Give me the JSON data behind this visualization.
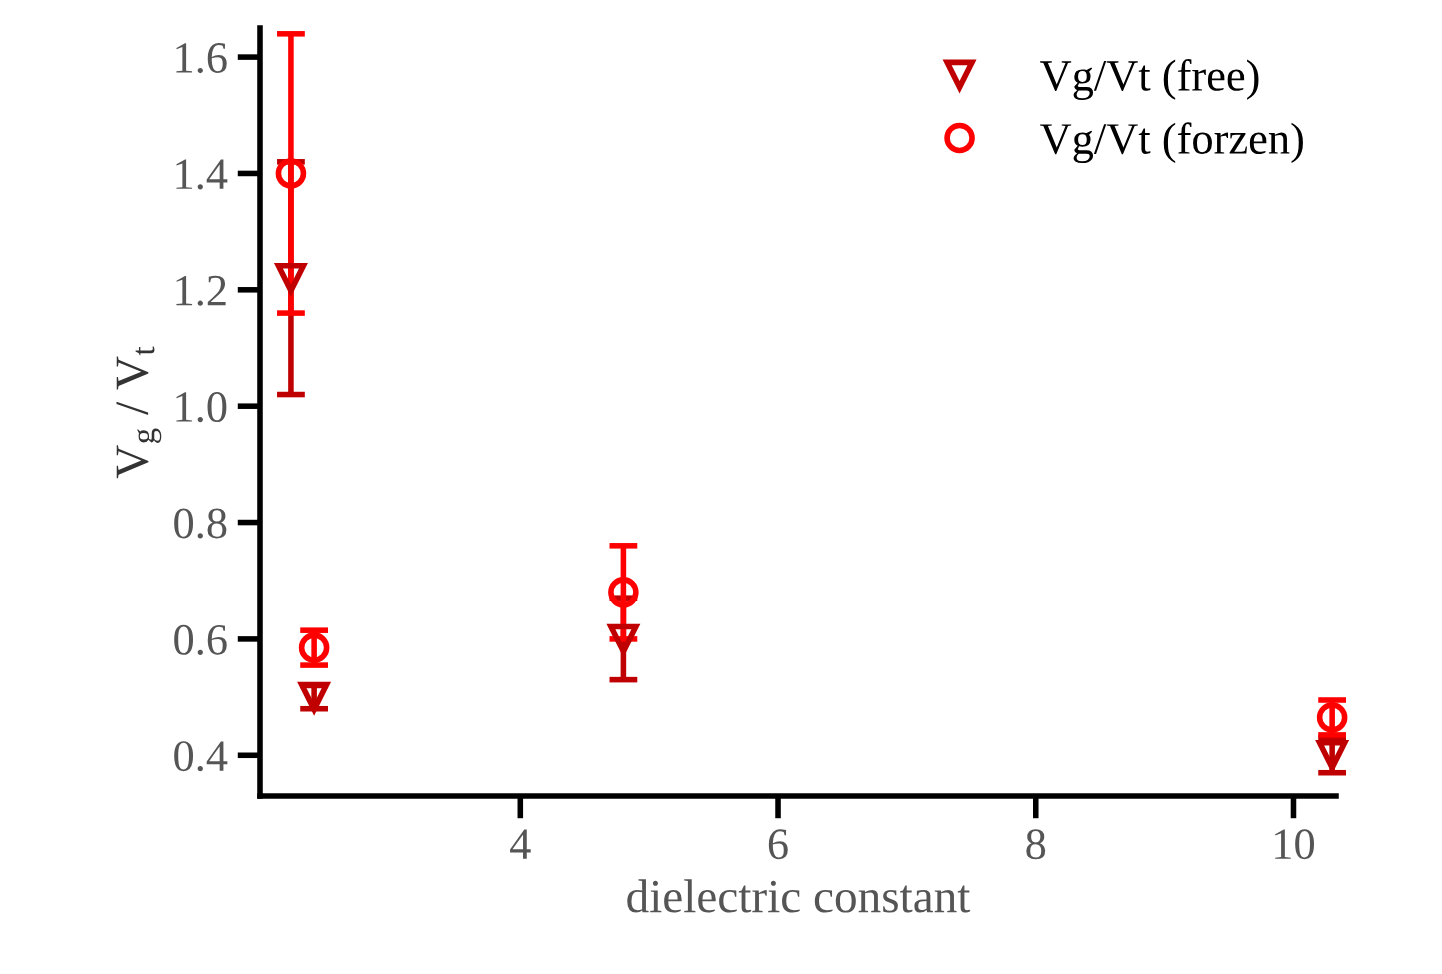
{
  "chart_data": {
    "type": "scatter",
    "xlabel": "dielectric constant",
    "ylabel": "V$_{g}$ / V$_{t}$",
    "x": [
      2.22,
      2.4,
      4.8,
      10.3
    ],
    "series": [
      {
        "name": "Vg/Vt (free)",
        "color": "#c00000",
        "marker": "triangle",
        "values": [
          1.22,
          0.5,
          0.6,
          0.4
        ],
        "errors": [
          0.2,
          0.02,
          0.07,
          0.03
        ]
      },
      {
        "name": "Vg/Vt (forzen)",
        "color": "#ff0000",
        "marker": "circle",
        "values": [
          1.4,
          0.585,
          0.68,
          0.465
        ],
        "errors": [
          0.24,
          0.03,
          0.08,
          0.03
        ]
      }
    ],
    "xlim": [
      1.98,
      10.33
    ],
    "ylim": [
      0.33,
      1.65
    ],
    "xticks": [
      4,
      6,
      8,
      10
    ],
    "yticks": [
      0.4,
      0.6,
      0.8,
      {
        "value": 1.0,
        "label": "1.0"
      },
      1.2,
      1.4,
      1.6
    ],
    "legend": "top right",
    "grid": false
  }
}
